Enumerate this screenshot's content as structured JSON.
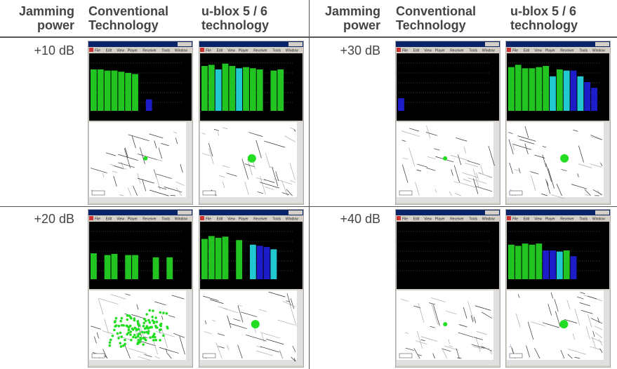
{
  "header": {
    "cells": [
      "Jamming power",
      "Conventional Technology",
      "u-blox 5 / 6 technology",
      "Jamming power",
      "Conventional Technology",
      "u-blox 5 / 6 technology"
    ]
  },
  "rows": [
    [
      "+10 dB",
      "+30 dB"
    ],
    [
      "+20 dB",
      "+40 dB"
    ]
  ],
  "window": {
    "menu": [
      "File",
      "Edit",
      "View",
      "Player",
      "Receiver",
      "Tools",
      "Window"
    ]
  }
}
